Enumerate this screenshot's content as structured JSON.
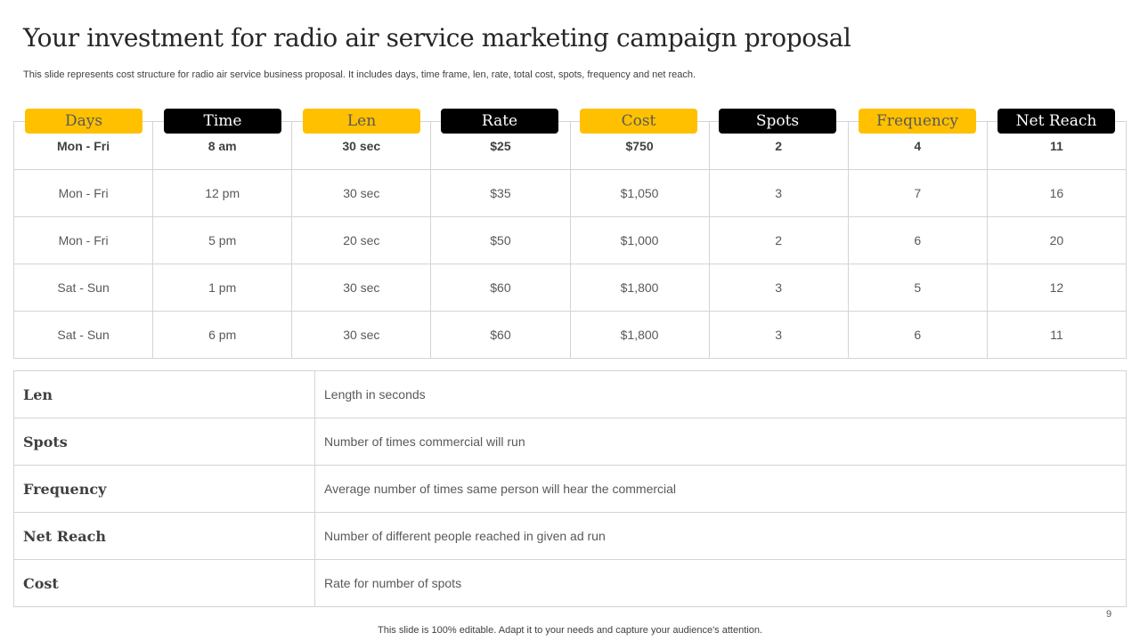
{
  "slide": {
    "title": "Your investment for radio air service marketing campaign proposal",
    "subtitle": "This slide represents cost structure for radio air service business proposal. It includes days, time frame, len, rate, total cost, spots, frequency and net reach.",
    "page_number": "9",
    "footer": "This slide is 100% editable. Adapt it to your needs and capture your audience's attention."
  },
  "colors": {
    "accent_yellow": "#ffc000",
    "accent_black": "#000000",
    "border": "#d4d4d4"
  },
  "table": {
    "headers": [
      "Days",
      "Time",
      "Len",
      "Rate",
      "Cost",
      "Spots",
      "Frequency",
      "Net Reach"
    ],
    "rows": [
      [
        "Mon - Fri",
        "8 am",
        "30 sec",
        "$25",
        "$750",
        "2",
        "4",
        "11"
      ],
      [
        "Mon - Fri",
        "12 pm",
        "30 sec",
        "$35",
        "$1,050",
        "3",
        "7",
        "16"
      ],
      [
        "Mon - Fri",
        "5 pm",
        "20 sec",
        "$50",
        "$1,000",
        "2",
        "6",
        "20"
      ],
      [
        "Sat - Sun",
        "1 pm",
        "30 sec",
        "$60",
        "$1,800",
        "3",
        "5",
        "12"
      ],
      [
        "Sat - Sun",
        "6 pm",
        "30 sec",
        "$60",
        "$1,800",
        "3",
        "6",
        "11"
      ]
    ]
  },
  "definitions": [
    {
      "term": "Len",
      "description": "Length in seconds"
    },
    {
      "term": "Spots",
      "description": "Number of times commercial will run"
    },
    {
      "term": "Frequency",
      "description": "Average  number of times same person will hear the commercial"
    },
    {
      "term": "Net Reach",
      "description": "Number of different people reached in given ad run"
    },
    {
      "term": "Cost",
      "description": "Rate for number of spots"
    }
  ]
}
